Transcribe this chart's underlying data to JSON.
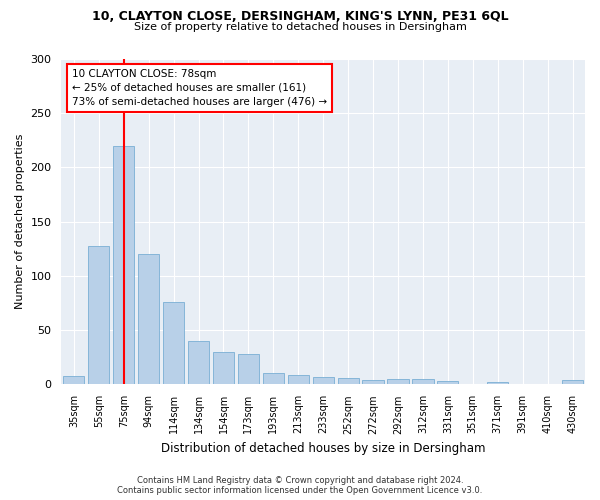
{
  "title_line1": "10, CLAYTON CLOSE, DERSINGHAM, KING'S LYNN, PE31 6QL",
  "title_line2": "Size of property relative to detached houses in Dersingham",
  "xlabel": "Distribution of detached houses by size in Dersingham",
  "ylabel": "Number of detached properties",
  "categories": [
    "35sqm",
    "55sqm",
    "75sqm",
    "94sqm",
    "114sqm",
    "134sqm",
    "154sqm",
    "173sqm",
    "193sqm",
    "213sqm",
    "233sqm",
    "252sqm",
    "272sqm",
    "292sqm",
    "312sqm",
    "331sqm",
    "351sqm",
    "371sqm",
    "391sqm",
    "410sqm",
    "430sqm"
  ],
  "values": [
    8,
    128,
    220,
    120,
    76,
    40,
    30,
    28,
    11,
    9,
    7,
    6,
    4,
    5,
    5,
    3,
    0,
    2,
    0,
    0,
    4
  ],
  "bar_color": "#b8d0e8",
  "bar_edge_color": "#7aafd4",
  "ylim": [
    0,
    300
  ],
  "yticks": [
    0,
    50,
    100,
    150,
    200,
    250,
    300
  ],
  "vline_x": 2,
  "vline_color": "red",
  "annotation_text": "10 CLAYTON CLOSE: 78sqm\n← 25% of detached houses are smaller (161)\n73% of semi-detached houses are larger (476) →",
  "footer_line1": "Contains HM Land Registry data © Crown copyright and database right 2024.",
  "footer_line2": "Contains public sector information licensed under the Open Government Licence v3.0.",
  "fig_bg_color": "#ffffff",
  "plot_bg_color": "#e8eef5"
}
